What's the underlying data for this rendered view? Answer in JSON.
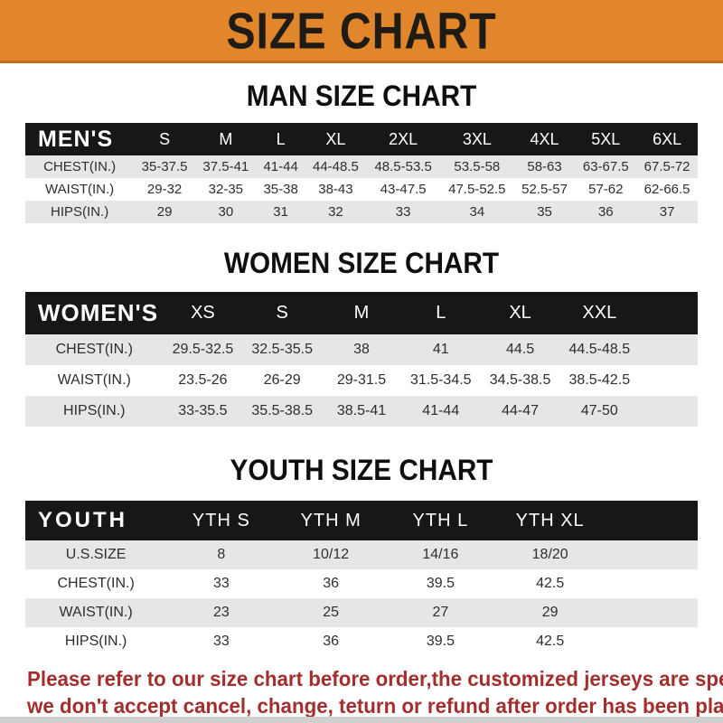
{
  "banner": {
    "title": "SIZE CHART"
  },
  "colors": {
    "banner_bg": "#E2862B",
    "banner_border": "#BF6D1E",
    "table_header_bg": "#171717",
    "row_alt_bg": "#E7E6E4",
    "disclaimer_red": "#A32E2E"
  },
  "sections": [
    {
      "title": "MAN SIZE CHART",
      "header_label": "MEN'S",
      "columns": [
        "S",
        "M",
        "L",
        "XL",
        "2XL",
        "3XL",
        "4XL",
        "5XL",
        "6XL"
      ],
      "rows": [
        {
          "label": "CHEST(IN.)",
          "values": [
            "35-37.5",
            "37.5-41",
            "41-44",
            "44-48.5",
            "48.5-53.5",
            "53.5-58",
            "58-63",
            "63-67.5",
            "67.5-72"
          ]
        },
        {
          "label": "WAIST(IN.)",
          "values": [
            "29-32",
            "32-35",
            "35-38",
            "38-43",
            "43-47.5",
            "47.5-52.5",
            "52.5-57",
            "57-62",
            "62-66.5"
          ]
        },
        {
          "label": "HIPS(IN.)",
          "values": [
            "29",
            "30",
            "31",
            "32",
            "33",
            "34",
            "35",
            "36",
            "37"
          ]
        }
      ]
    },
    {
      "title": "WOMEN SIZE CHART",
      "header_label": "WOMEN'S",
      "columns": [
        "XS",
        "S",
        "M",
        "L",
        "XL",
        "XXL"
      ],
      "rows": [
        {
          "label": "CHEST(IN.)",
          "values": [
            "29.5-32.5",
            "32.5-35.5",
            "38",
            "41",
            "44.5",
            "44.5-48.5"
          ]
        },
        {
          "label": "WAIST(IN.)",
          "values": [
            "23.5-26",
            "26-29",
            "29-31.5",
            "31.5-34.5",
            "34.5-38.5",
            "38.5-42.5"
          ]
        },
        {
          "label": "HIPS(IN.)",
          "values": [
            "33-35.5",
            "35.5-38.5",
            "38.5-41",
            "41-44",
            "44-47",
            "47-50"
          ]
        }
      ]
    },
    {
      "title": "YOUTH SIZE CHART",
      "header_label": "YOUTH",
      "columns": [
        "YTH S",
        "YTH M",
        "YTH L",
        "YTH XL"
      ],
      "rows": [
        {
          "label": "U.S.SIZE",
          "values": [
            "8",
            "10/12",
            "14/16",
            "18/20"
          ]
        },
        {
          "label": "CHEST(IN.)",
          "values": [
            "33",
            "36",
            "39.5",
            "42.5"
          ]
        },
        {
          "label": "WAIST(IN.)",
          "values": [
            "23",
            "25",
            "27",
            "29"
          ]
        },
        {
          "label": "HIPS(IN.)",
          "values": [
            "33",
            "36",
            "39.5",
            "42.5"
          ]
        }
      ]
    }
  ],
  "disclaimer": {
    "line1": "Please refer to our size chart before order,the customized jerseys are special products,",
    "line2": "we don't accept cancel, change, teturn or refund after order has been placed!"
  }
}
